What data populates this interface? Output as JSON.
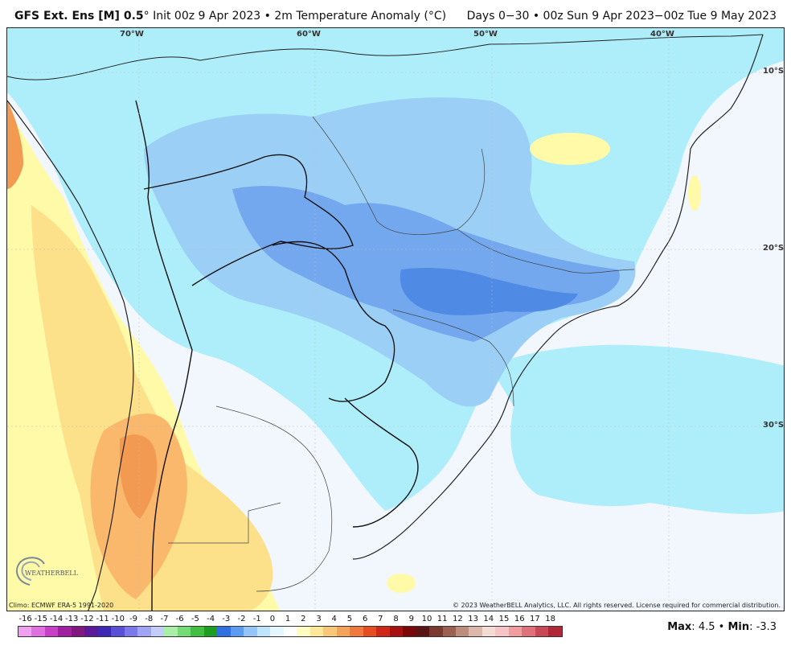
{
  "header": {
    "model": "GFS Ext.  Ens [M] 0.5",
    "degree_symbol": "°",
    "init": "Init 00z 9 Apr 2023",
    "bullet": "•",
    "variable": "2m Temperature Anomaly (°C)",
    "valid": "Days 0−30 • 00z Sun 9 Apr 2023−00z Tue 9 May 2023"
  },
  "map": {
    "longitude_labels": [
      "70°W",
      "60°W",
      "50°W",
      "40°W"
    ],
    "latitude_labels": [
      "10°S",
      "20°S",
      "30°S"
    ],
    "climo": "Climo: ECMWF ERA-5 1991-2020",
    "copyright": "© 2023 WeatherBELL Analytics, LLC. All rights reserved. License required for commercial distribution.",
    "logo_text": "WEATHERBELL",
    "colors": {
      "ocean_neutral": "#f2f6fd",
      "cool_light": "#aeeefa",
      "cool_mid": "#9ccff6",
      "cool_strong": "#74a8ee",
      "cool_deep": "#4f8ae4",
      "warm_light": "#fffaa8",
      "warm_mid": "#fde08a",
      "warm_strong": "#f9b86c",
      "warm_deep": "#f39a52"
    }
  },
  "legend": {
    "ticks": [
      "-16",
      "-15",
      "-14",
      "-13",
      "-12",
      "-11",
      "-10",
      "-9",
      "-8",
      "-7",
      "-6",
      "-5",
      "-4",
      "-3",
      "-2",
      "-1",
      "0",
      "1",
      "2",
      "3",
      "4",
      "5",
      "6",
      "7",
      "8",
      "9",
      "10",
      "11",
      "12",
      "13",
      "14",
      "15",
      "16",
      "17",
      "18"
    ],
    "colors": [
      "#f0a0f0",
      "#e070e0",
      "#c840c8",
      "#a020a0",
      "#801880",
      "#5a1a9a",
      "#3c28b4",
      "#5a50d8",
      "#7a78ea",
      "#a0a4f4",
      "#c4ccfa",
      "#a8f0a8",
      "#74dc74",
      "#40c040",
      "#1e9e1e",
      "#3070e0",
      "#5c9cf0",
      "#94c4f8",
      "#bde4fb",
      "#e6f6ff",
      "#ffffff",
      "#fffcc0",
      "#fde89a",
      "#f8c878",
      "#f4a45a",
      "#f07a3c",
      "#e64e22",
      "#d02818",
      "#a81010",
      "#7a0808",
      "#5a1414",
      "#7a3a30",
      "#9a6050",
      "#bc8c7c",
      "#dcb8ac",
      "#f2dcd4",
      "#f6c4c4",
      "#f09ca0",
      "#e0707a",
      "#c84858",
      "#b02838"
    ]
  },
  "stats": {
    "max_label": "Max",
    "max_value": "4.5",
    "separator": "•",
    "min_label": "Min",
    "min_value": "-3.3"
  }
}
